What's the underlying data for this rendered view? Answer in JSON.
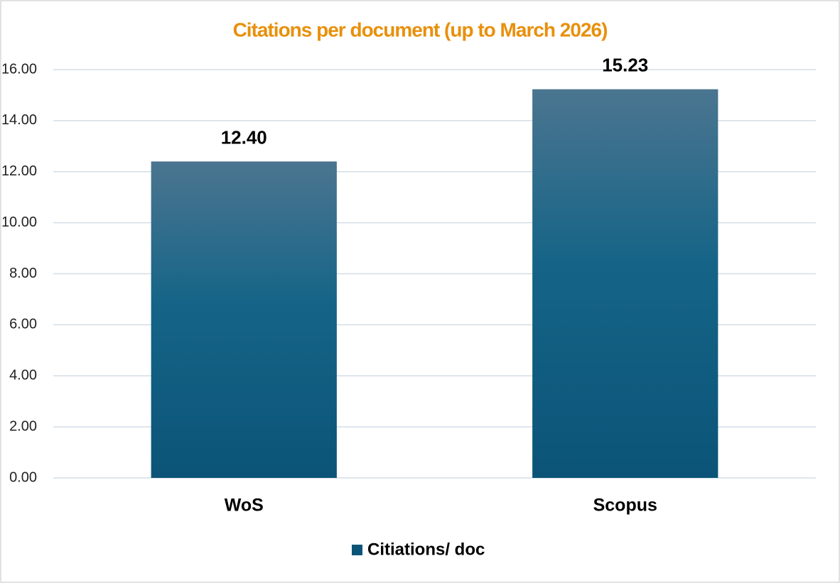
{
  "chart_data": {
    "type": "bar",
    "title": "Citations per document (up to March 2026)",
    "title_color": "#e8900c",
    "categories": [
      "WoS",
      "Scopus"
    ],
    "series": [
      {
        "name": "Citiations/ doc",
        "color": "#0b5478",
        "values": [
          12.4,
          15.23
        ],
        "value_labels": [
          "12.40",
          "15.23"
        ]
      }
    ],
    "ylim": [
      0,
      16
    ],
    "yticks": [
      {
        "value": 0,
        "label": "0.00"
      },
      {
        "value": 2,
        "label": "2.00"
      },
      {
        "value": 4,
        "label": "4.00"
      },
      {
        "value": 6,
        "label": "6.00"
      },
      {
        "value": 8,
        "label": "8.00"
      },
      {
        "value": 10,
        "label": "10.00"
      },
      {
        "value": 12,
        "label": "12.00"
      },
      {
        "value": 14,
        "label": "14.00"
      },
      {
        "value": 16,
        "label": "16.00"
      }
    ],
    "grid": true,
    "legend": "bottom"
  }
}
